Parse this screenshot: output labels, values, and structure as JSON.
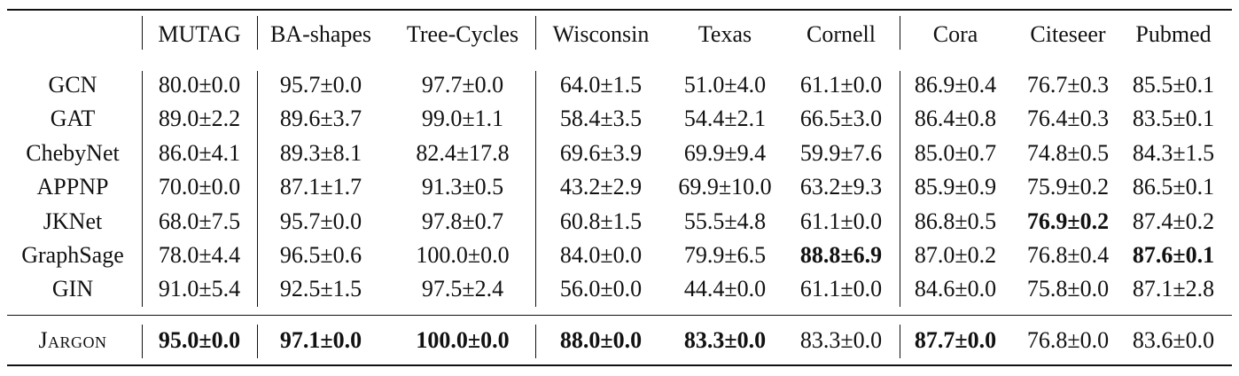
{
  "columns": [
    "MUTAG",
    "BA-shapes",
    "Tree-Cycles",
    "Wisconsin",
    "Texas",
    "Cornell",
    "Cora",
    "Citeseer",
    "Pubmed"
  ],
  "rows": [
    {
      "model": "GCN",
      "cells": [
        "80.0±0.0",
        "95.7±0.0",
        "97.7±0.0",
        "64.0±1.5",
        "51.0±4.0",
        "61.1±0.0",
        "86.9±0.4",
        "76.7±0.3",
        "85.5±0.1"
      ],
      "bold": []
    },
    {
      "model": "GAT",
      "cells": [
        "89.0±2.2",
        "89.6±3.7",
        "99.0±1.1",
        "58.4±3.5",
        "54.4±2.1",
        "66.5±3.0",
        "86.4±0.8",
        "76.4±0.3",
        "83.5±0.1"
      ],
      "bold": []
    },
    {
      "model": "ChebyNet",
      "cells": [
        "86.0±4.1",
        "89.3±8.1",
        "82.4±17.8",
        "69.6±3.9",
        "69.9±9.4",
        "59.9±7.6",
        "85.0±0.7",
        "74.8±0.5",
        "84.3±1.5"
      ],
      "bold": []
    },
    {
      "model": "APPNP",
      "cells": [
        "70.0±0.0",
        "87.1±1.7",
        "91.3±0.5",
        "43.2±2.9",
        "69.9±10.0",
        "63.2±9.3",
        "85.9±0.9",
        "75.9±0.2",
        "86.5±0.1"
      ],
      "bold": []
    },
    {
      "model": "JKNet",
      "cells": [
        "68.0±7.5",
        "95.7±0.0",
        "97.8±0.7",
        "60.8±1.5",
        "55.5±4.8",
        "61.1±0.0",
        "86.8±0.5",
        "76.9±0.2",
        "87.4±0.2"
      ],
      "bold": [
        7
      ]
    },
    {
      "model": "GraphSage",
      "cells": [
        "78.0±4.4",
        "96.5±0.6",
        "100.0±0.0",
        "84.0±0.0",
        "79.9±6.5",
        "88.8±6.9",
        "87.0±0.2",
        "76.8±0.4",
        "87.6±0.1"
      ],
      "bold": [
        5,
        8
      ]
    },
    {
      "model": "GIN",
      "cells": [
        "91.0±5.4",
        "92.5±1.5",
        "97.5±2.4",
        "56.0±0.0",
        "44.4±0.0",
        "61.1±0.0",
        "84.6±0.0",
        "75.8±0.0",
        "87.1±2.8"
      ],
      "bold": []
    }
  ],
  "final_row": {
    "model": "Jargon",
    "cells": [
      "95.0±0.0",
      "97.1±0.0",
      "100.0±0.0",
      "88.0±0.0",
      "83.3±0.0",
      "83.3±0.0",
      "87.7±0.0",
      "76.8±0.0",
      "83.6±0.0"
    ],
    "bold": [
      0,
      1,
      2,
      3,
      4,
      6
    ]
  }
}
